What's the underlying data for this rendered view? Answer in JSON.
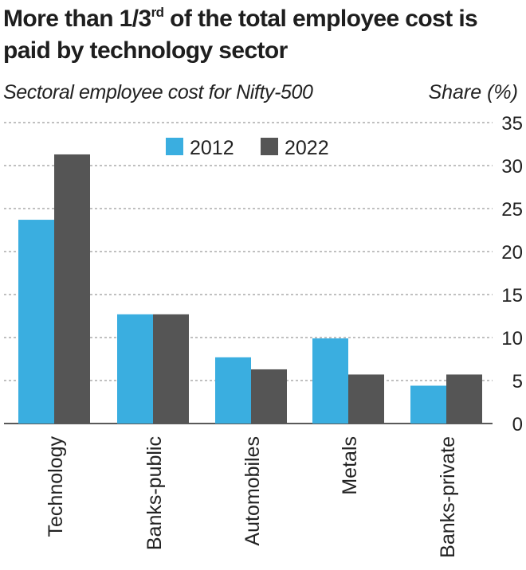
{
  "title": {
    "main_before": "More than 1/3",
    "superscript": "rd",
    "main_after": " of the total employee cost is paid by technology sector"
  },
  "subtitle": "Sectoral employee cost for Nifty-500",
  "y_unit": "Share (%)",
  "colors": {
    "2012": "#3aaee0",
    "2022": "#555555",
    "grid": "#9a9a9a",
    "axis": "#222222"
  },
  "chart_data": {
    "type": "bar",
    "title": "More than 1/3rd of the total employee cost is paid by technology sector",
    "subtitle": "Sectoral employee cost for Nifty-500",
    "xlabel": "",
    "ylabel": "Share (%)",
    "categories": [
      "Technology",
      "Banks-public",
      "Automobiles",
      "Metals",
      "Banks-private"
    ],
    "series": [
      {
        "name": "2012",
        "values": [
          23.7,
          12.7,
          7.7,
          9.9,
          4.4
        ]
      },
      {
        "name": "2022",
        "values": [
          31.3,
          12.7,
          6.3,
          5.7,
          5.7
        ]
      }
    ],
    "ylim": [
      0,
      35
    ],
    "yticks": [
      0,
      5,
      10,
      15,
      20,
      25,
      30,
      35
    ],
    "grid": true,
    "legend_position": "top-center",
    "y_axis_side": "right"
  }
}
